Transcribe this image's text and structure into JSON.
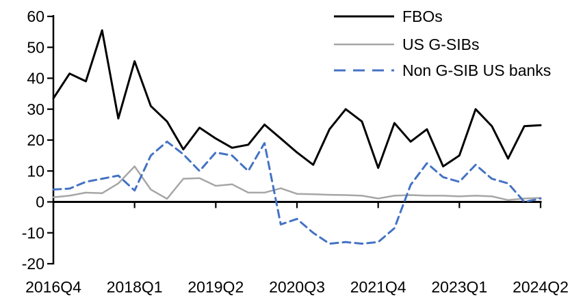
{
  "chart_data": {
    "type": "line",
    "title": "",
    "xlabel": "",
    "ylabel": "",
    "grid": false,
    "legend_position": "top-right",
    "axis_color": "#000000",
    "background_color": "#ffffff",
    "ylim": [
      -20,
      60
    ],
    "y_ticks": [
      60,
      50,
      40,
      30,
      20,
      10,
      0,
      -10,
      -20
    ],
    "x_tick_labels": [
      "2016Q4",
      "2018Q1",
      "2019Q2",
      "2020Q3",
      "2021Q4",
      "2023Q1",
      "2024Q2"
    ],
    "categories": [
      "2016Q4",
      "2017Q1",
      "2017Q2",
      "2017Q3",
      "2017Q4",
      "2018Q1",
      "2018Q2",
      "2018Q3",
      "2018Q4",
      "2019Q1",
      "2019Q2",
      "2019Q3",
      "2019Q4",
      "2020Q1",
      "2020Q2",
      "2020Q3",
      "2020Q4",
      "2021Q1",
      "2021Q2",
      "2021Q3",
      "2021Q4",
      "2022Q1",
      "2022Q2",
      "2022Q3",
      "2022Q4",
      "2023Q1",
      "2023Q2",
      "2023Q3",
      "2023Q4",
      "2024Q1",
      "2024Q2"
    ],
    "series": [
      {
        "name": "FBOs",
        "color": "#000000",
        "style": "solid",
        "values": [
          33.5,
          41.5,
          39,
          55.5,
          27,
          45.5,
          31,
          26,
          17,
          24,
          20.5,
          17.5,
          18.5,
          25,
          20.5,
          16,
          12,
          23.5,
          30,
          26,
          11,
          25.5,
          19.5,
          23.5,
          11.5,
          15,
          30,
          24.5,
          14,
          24.5,
          24.8
        ]
      },
      {
        "name": "US G-SIBs",
        "color": "#A6A6A6",
        "style": "solid",
        "values": [
          1.5,
          2,
          3,
          2.8,
          6,
          11.5,
          4,
          1,
          7.5,
          7.7,
          5.2,
          5.7,
          3,
          3,
          4.4,
          2.6,
          2.5,
          2.3,
          2.2,
          2,
          1.1,
          2,
          2.2,
          2,
          2,
          1.8,
          2,
          1.8,
          0.6,
          1.1,
          1.3
        ]
      },
      {
        "name": "Non G-SIB US banks",
        "color": "#4472C4",
        "style": "dashed",
        "values": [
          4,
          4.3,
          6.5,
          7.5,
          8.5,
          3.7,
          15,
          19.5,
          15.4,
          10,
          16,
          15,
          10,
          19,
          -7.3,
          -5.5,
          -10,
          -13.5,
          -13,
          -13.5,
          -13,
          -8.5,
          5.5,
          12.5,
          8,
          6.5,
          12,
          7.5,
          6,
          0,
          1.1
        ]
      }
    ]
  }
}
